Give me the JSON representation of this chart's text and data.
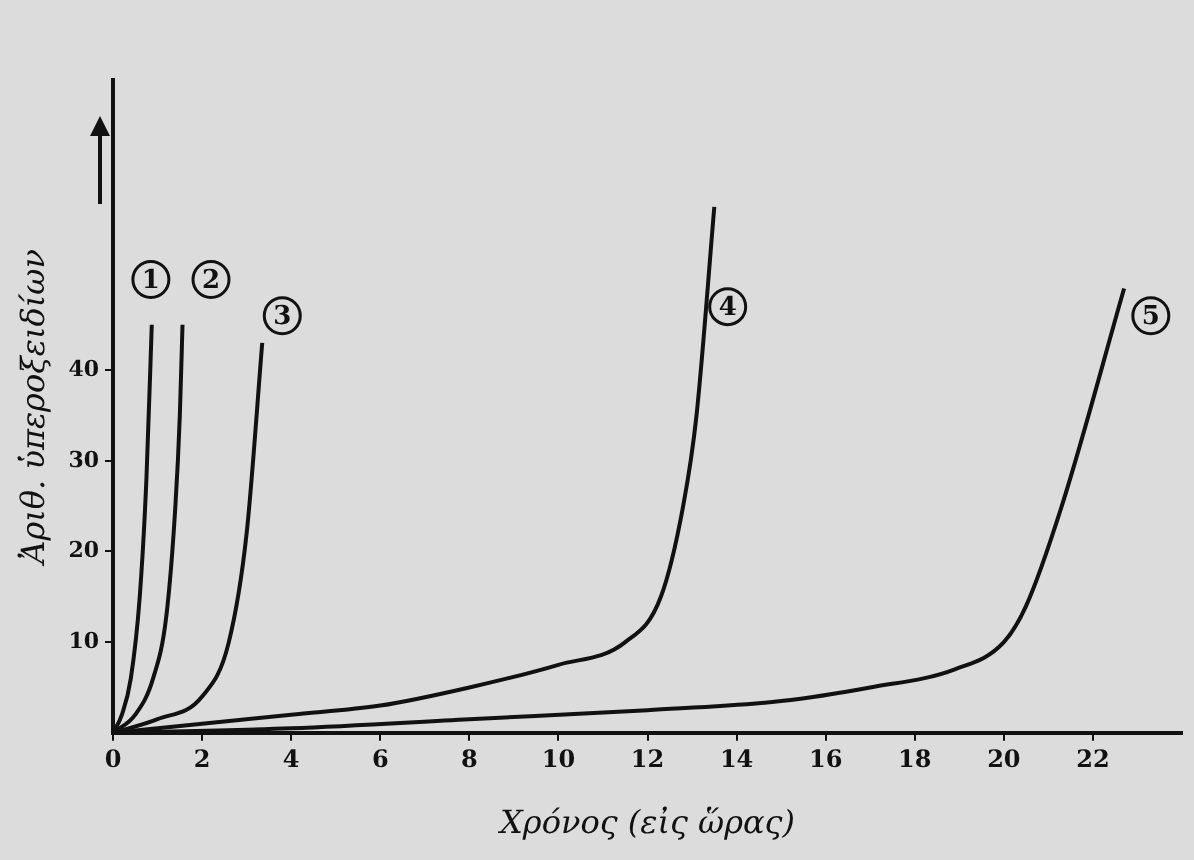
{
  "chart_data": {
    "type": "line",
    "xlabel": "Χρόνος (εἰς ὥρας)",
    "ylabel": "Ἀριθ. ὑπεροξειδίων",
    "xlim": [
      0,
      24
    ],
    "xticks": [
      0,
      2,
      4,
      6,
      8,
      10,
      12,
      14,
      16,
      18,
      20,
      22
    ],
    "ylim": [
      0,
      72
    ],
    "yticks": [
      10,
      20,
      30,
      40
    ],
    "grid": false,
    "legend": false,
    "marker": "none",
    "line_style": "solid",
    "series": [
      {
        "color": "#111111",
        "x": [
          0,
          0.2,
          0.4,
          0.6,
          0.75,
          0.87
        ],
        "values": [
          0,
          2,
          6,
          15,
          28,
          45
        ]
      },
      {
        "color": "#111111",
        "x": [
          0,
          0.5,
          0.9,
          1.2,
          1.4,
          1.5,
          1.56
        ],
        "values": [
          0,
          2,
          6,
          13,
          25,
          35,
          45
        ]
      },
      {
        "color": "#111111",
        "x": [
          0,
          1,
          2,
          2.6,
          3,
          3.35
        ],
        "values": [
          0,
          1.5,
          4,
          10,
          22,
          43
        ]
      },
      {
        "color": "#111111",
        "x": [
          0,
          2,
          4,
          6,
          8,
          10,
          11.5,
          12.3,
          12.8,
          13.1,
          13.5
        ],
        "values": [
          0,
          1,
          2,
          3,
          5,
          7.5,
          10,
          15,
          25,
          35,
          58
        ]
      },
      {
        "color": "#111111",
        "x": [
          0,
          4,
          8,
          12,
          15,
          17,
          18.9,
          20,
          20.5,
          21.3,
          22.7
        ],
        "values": [
          0,
          0.5,
          1.5,
          2.5,
          3.5,
          5,
          7,
          10,
          14,
          25,
          49
        ]
      }
    ],
    "annotations": [
      {
        "text": "1",
        "x": 0.85,
        "y": 50
      },
      {
        "text": "2",
        "x": 2.2,
        "y": 50
      },
      {
        "text": "3",
        "x": 3.8,
        "y": 46
      },
      {
        "text": "4",
        "x": 13.8,
        "y": 47
      },
      {
        "text": "5",
        "x": 23.3,
        "y": 46
      }
    ]
  }
}
